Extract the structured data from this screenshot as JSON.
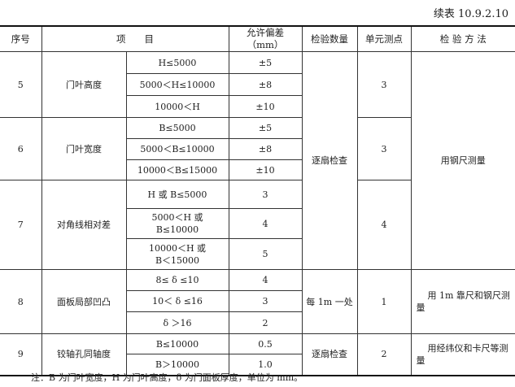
{
  "caption": "续表 10.9.2.10",
  "headers": [
    "序号",
    "项　　目",
    "允许偏差（mm）",
    "检验数量",
    "单元测点",
    "检 验 方 法"
  ],
  "groups": [
    {
      "no": "5",
      "item": "门叶高度",
      "rows": [
        {
          "cond": "H≤5000",
          "tol": "±5"
        },
        {
          "cond": "5000＜H≤10000",
          "tol": "±8"
        },
        {
          "cond": "10000＜H",
          "tol": "±10"
        }
      ],
      "points": "3"
    },
    {
      "no": "6",
      "item": "门叶宽度",
      "rows": [
        {
          "cond": "B≤5000",
          "tol": "±5"
        },
        {
          "cond": "5000＜B≤10000",
          "tol": "±8"
        },
        {
          "cond": "10000＜B≤15000",
          "tol": "±10"
        }
      ],
      "points": "3"
    },
    {
      "no": "7",
      "item": "对角线相对差",
      "rows": [
        {
          "cond": "H 或 B≤5000",
          "tol": "3"
        },
        {
          "cond": "5000＜H 或 B≤10000",
          "tol": "4"
        },
        {
          "cond": "10000＜H 或 B＜15000",
          "tol": "5"
        }
      ],
      "points": "4"
    },
    {
      "no": "8",
      "item": "面板局部凹凸",
      "rows": [
        {
          "cond": "8≤ δ ≤10",
          "tol": "4"
        },
        {
          "cond": "10＜ δ ≤16",
          "tol": "3"
        },
        {
          "cond": "δ ＞16",
          "tol": "2"
        }
      ],
      "points": "1",
      "qty": "每 1m 一处",
      "method": "用 1m 靠尺和钢尺测量"
    },
    {
      "no": "9",
      "item": "铰轴孔同轴度",
      "rows": [
        {
          "cond": "B≤10000",
          "tol": "0.5"
        },
        {
          "cond": "B＞10000",
          "tol": "1.0"
        }
      ],
      "points": "2",
      "qty": "逐扇检查",
      "method": "用经纬仪和卡尺等测量"
    }
  ],
  "qty_5_7": "逐扇检查",
  "method_5_7": "用钢尺测量",
  "note": "注：B 为门叶宽度，H 为门叶高度，δ 为门面板厚度，单位为 mm。"
}
